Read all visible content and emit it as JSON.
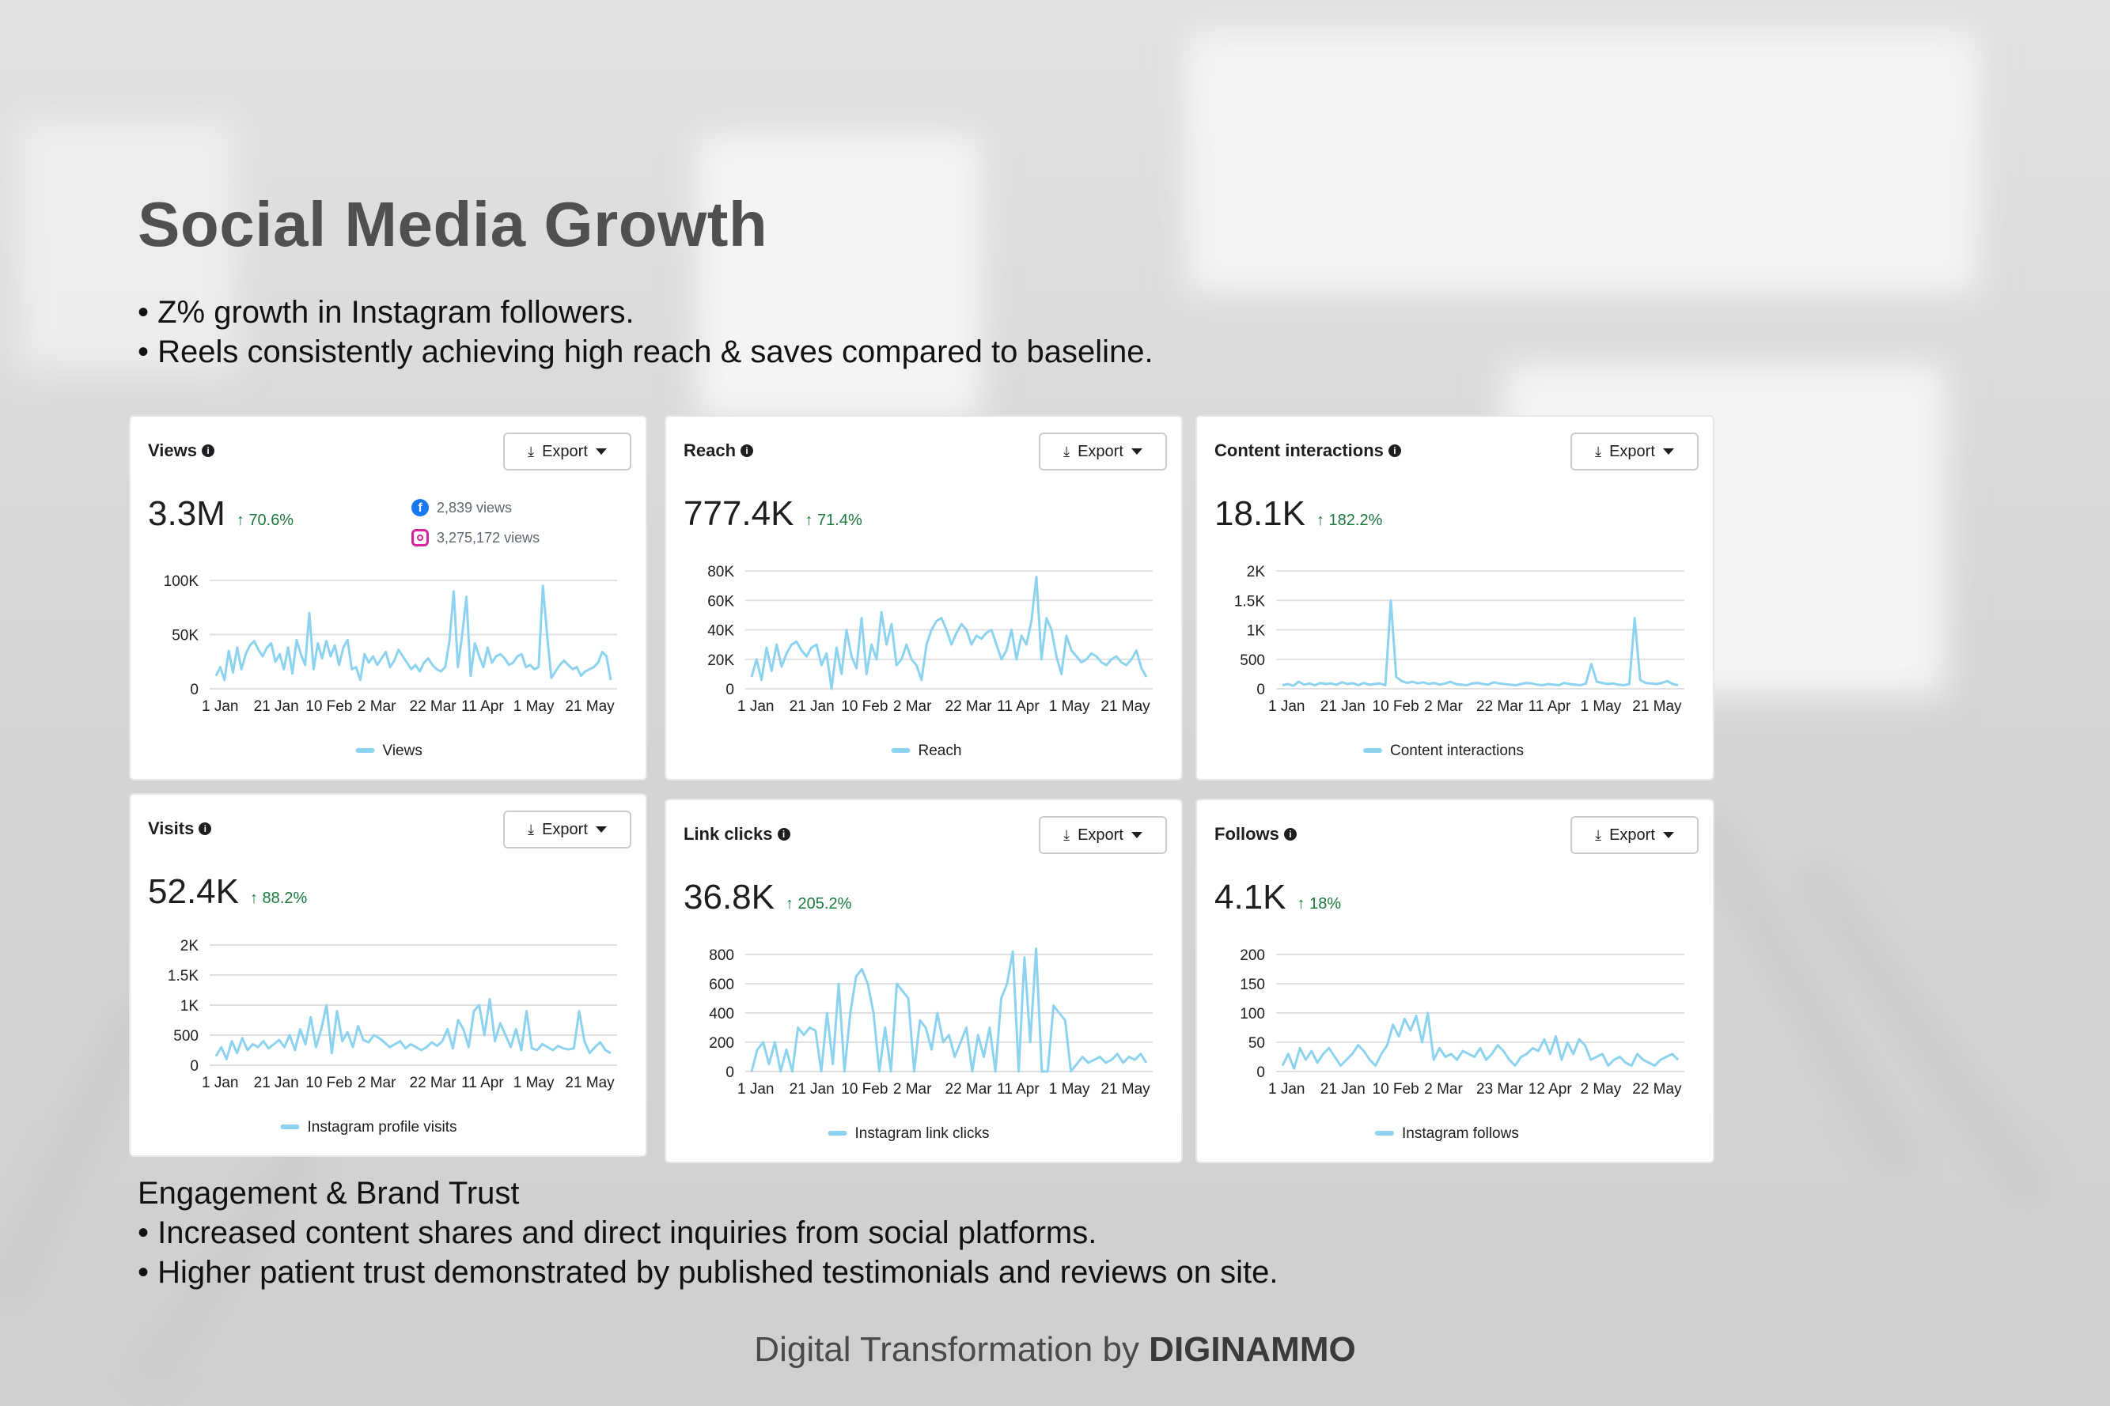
{
  "slide": {
    "title": "Social Media Growth",
    "bullets": [
      "• Z% growth in Instagram followers.",
      "• Reels consistently achieving high reach & saves compared to baseline."
    ],
    "bottom_heading": "Engagement & Brand Trust",
    "bottom_bullets": [
      "• Increased content shares and direct inquiries from social platforms.",
      "• Higher patient trust demonstrated by published testimonials and reviews on site."
    ],
    "footer_prefix": "Digital Transformation by ",
    "footer_brand": "DIGINAMMO"
  },
  "colors": {
    "line": "#8dd3ef",
    "grid": "#e0e0e0",
    "up": "#1b7a3d"
  },
  "cards": [
    {
      "title": "Views",
      "info_icon": "i",
      "export_label": "Export",
      "value": "3.3M",
      "change": "↑ 70.6%",
      "sources": [
        {
          "icon": "facebook-icon",
          "label": "2,839 views"
        },
        {
          "icon": "instagram-icon",
          "label": "3,275,172 views"
        }
      ]
    },
    {
      "title": "Reach",
      "info_icon": "i",
      "export_label": "Export",
      "value": "777.4K",
      "change": "↑ 71.4%"
    },
    {
      "title": "Content interactions",
      "info_icon": "i",
      "export_label": "Export",
      "value": "18.1K",
      "change": "↑ 182.2%"
    },
    {
      "title": "Visits",
      "info_icon": "i",
      "export_label": "Export",
      "value": "52.4K",
      "change": "↑ 88.2%"
    },
    {
      "title": "Link clicks",
      "info_icon": "i",
      "export_label": "Export",
      "value": "36.8K",
      "change": "↑ 205.2%"
    },
    {
      "title": "Follows",
      "info_icon": "i",
      "export_label": "Export",
      "value": "4.1K",
      "change": "↑ 18%"
    }
  ],
  "chart_data": [
    {
      "type": "line",
      "series": [
        {
          "name": "Views",
          "values": [
            12000,
            20000,
            8000,
            35000,
            15000,
            38000,
            18000,
            32000,
            40000,
            44000,
            36000,
            30000,
            38000,
            42000,
            25000,
            32000,
            18000,
            38000,
            14000,
            45000,
            32000,
            22000,
            70000,
            18000,
            42000,
            28000,
            44000,
            30000,
            40000,
            22000,
            38000,
            45000,
            18000,
            20000,
            8000,
            32000,
            24000,
            30000,
            22000,
            28000,
            34000,
            20000,
            26000,
            36000,
            30000,
            24000,
            18000,
            22000,
            16000,
            24000,
            28000,
            22000,
            18000,
            16000,
            20000,
            44000,
            90000,
            20000,
            50000,
            85000,
            12000,
            42000,
            30000,
            20000,
            38000,
            24000,
            30000,
            32000,
            28000,
            22000,
            24000,
            30000,
            32000,
            20000,
            22000,
            18000,
            20000,
            95000,
            50000,
            10000,
            16000,
            22000,
            26000,
            22000,
            18000,
            20000,
            12000,
            16000,
            18000,
            20000,
            24000,
            34000,
            30000,
            8000
          ]
        }
      ],
      "yticks": [
        "0",
        "50K",
        "100K"
      ],
      "ylim": [
        0,
        100000
      ],
      "xticks": [
        "1 Jan",
        "21 Jan",
        "10 Feb",
        "2 Mar",
        "22 Mar",
        "11 Apr",
        "1 May",
        "21 May"
      ],
      "legend": "Views"
    },
    {
      "type": "line",
      "series": [
        {
          "name": "Reach",
          "values": [
            8000,
            20000,
            6000,
            28000,
            12000,
            30000,
            15000,
            24000,
            30000,
            32000,
            26000,
            22000,
            28000,
            30000,
            16000,
            24000,
            0,
            28000,
            10000,
            40000,
            22000,
            14000,
            48000,
            10000,
            30000,
            20000,
            52000,
            30000,
            44000,
            16000,
            20000,
            30000,
            20000,
            16000,
            6000,
            30000,
            40000,
            46000,
            48000,
            40000,
            30000,
            38000,
            44000,
            40000,
            30000,
            36000,
            34000,
            38000,
            40000,
            30000,
            20000,
            26000,
            40000,
            20000,
            36000,
            30000,
            46000,
            76000,
            20000,
            48000,
            40000,
            22000,
            10000,
            36000,
            26000,
            22000,
            18000,
            20000,
            24000,
            22000,
            18000,
            16000,
            20000,
            22000,
            18000,
            16000,
            20000,
            26000,
            14000,
            8000
          ]
        }
      ],
      "yticks": [
        "0",
        "20K",
        "40K",
        "60K",
        "80K"
      ],
      "ylim": [
        0,
        80000
      ],
      "xticks": [
        "1 Jan",
        "21 Jan",
        "10 Feb",
        "2 Mar",
        "22 Mar",
        "11 Apr",
        "1 May",
        "21 May"
      ],
      "legend": "Reach"
    },
    {
      "type": "line",
      "series": [
        {
          "name": "Content interactions",
          "values": [
            60,
            80,
            50,
            120,
            70,
            90,
            60,
            100,
            80,
            90,
            70,
            110,
            80,
            95,
            60,
            100,
            70,
            80,
            90,
            60,
            1500,
            200,
            130,
            100,
            120,
            90,
            110,
            80,
            100,
            70,
            90,
            120,
            80,
            70,
            60,
            90,
            100,
            80,
            70,
            110,
            90,
            80,
            70,
            60,
            80,
            100,
            90,
            70,
            60,
            80,
            70,
            60,
            100,
            80,
            70,
            60,
            90,
            420,
            120,
            100,
            80,
            90,
            70,
            60,
            80,
            1200,
            150,
            100,
            90,
            80,
            100,
            130,
            80,
            60
          ]
        }
      ],
      "yticks": [
        "0",
        "500",
        "1K",
        "1.5K",
        "2K"
      ],
      "ylim": [
        0,
        2000
      ],
      "xticks": [
        "1 Jan",
        "21 Jan",
        "10 Feb",
        "2 Mar",
        "22 Mar",
        "11 Apr",
        "1 May",
        "21 May"
      ],
      "legend": "Content interactions"
    },
    {
      "type": "line",
      "series": [
        {
          "name": "Instagram profile visits",
          "values": [
            150,
            300,
            100,
            400,
            200,
            450,
            250,
            350,
            300,
            400,
            280,
            350,
            420,
            300,
            500,
            250,
            600,
            350,
            800,
            300,
            600,
            1000,
            200,
            900,
            400,
            550,
            300,
            650,
            420,
            380,
            500,
            450,
            380,
            300,
            350,
            400,
            280,
            350,
            300,
            250,
            300,
            380,
            320,
            400,
            600,
            280,
            750,
            600,
            300,
            900,
            1000,
            500,
            1100,
            400,
            700,
            500,
            300,
            600,
            250,
            900,
            280,
            250,
            350,
            300,
            250,
            320,
            280,
            260,
            280,
            900,
            400,
            200,
            300,
            380,
            250,
            200
          ]
        }
      ],
      "yticks": [
        "0",
        "500",
        "1K",
        "1.5K",
        "2K"
      ],
      "ylim": [
        0,
        2000
      ],
      "xticks": [
        "1 Jan",
        "21 Jan",
        "10 Feb",
        "2 Mar",
        "22 Mar",
        "11 Apr",
        "1 May",
        "21 May"
      ],
      "legend": "Instagram profile visits"
    },
    {
      "type": "line",
      "series": [
        {
          "name": "Instagram link clicks",
          "values": [
            0,
            150,
            200,
            50,
            200,
            0,
            150,
            0,
            300,
            250,
            300,
            280,
            0,
            400,
            50,
            600,
            0,
            400,
            650,
            700,
            600,
            400,
            0,
            300,
            0,
            600,
            550,
            500,
            0,
            350,
            300,
            150,
            400,
            200,
            250,
            100,
            200,
            300,
            0,
            250,
            100,
            300,
            0,
            500,
            600,
            820,
            0,
            780,
            200,
            840,
            0,
            0,
            450,
            400,
            350,
            0,
            50,
            100,
            60,
            80,
            100,
            60,
            80,
            120,
            60,
            100,
            80,
            120,
            60
          ]
        }
      ],
      "yticks": [
        "0",
        "200",
        "400",
        "600",
        "800"
      ],
      "ylim": [
        0,
        800
      ],
      "xticks": [
        "1 Jan",
        "21 Jan",
        "10 Feb",
        "2 Mar",
        "22 Mar",
        "11 Apr",
        "1 May",
        "21 May"
      ],
      "legend": "Instagram link clicks"
    },
    {
      "type": "line",
      "series": [
        {
          "name": "Instagram follows",
          "values": [
            10,
            30,
            5,
            40,
            20,
            35,
            15,
            30,
            40,
            25,
            10,
            20,
            30,
            45,
            35,
            20,
            10,
            30,
            45,
            80,
            60,
            90,
            70,
            95,
            50,
            100,
            20,
            40,
            25,
            30,
            20,
            35,
            30,
            25,
            40,
            20,
            30,
            45,
            35,
            20,
            10,
            25,
            30,
            40,
            35,
            55,
            30,
            60,
            20,
            50,
            30,
            55,
            45,
            20,
            25,
            30,
            10,
            20,
            25,
            15,
            10,
            30,
            20,
            15,
            10,
            20,
            25,
            30,
            20
          ]
        }
      ],
      "yticks": [
        "0",
        "50",
        "100",
        "150",
        "200"
      ],
      "ylim": [
        0,
        200
      ],
      "xticks": [
        "1 Jan",
        "21 Jan",
        "10 Feb",
        "2 Mar",
        "23 Mar",
        "12 Apr",
        "2 May",
        "22 May"
      ],
      "legend": "Instagram follows"
    }
  ]
}
